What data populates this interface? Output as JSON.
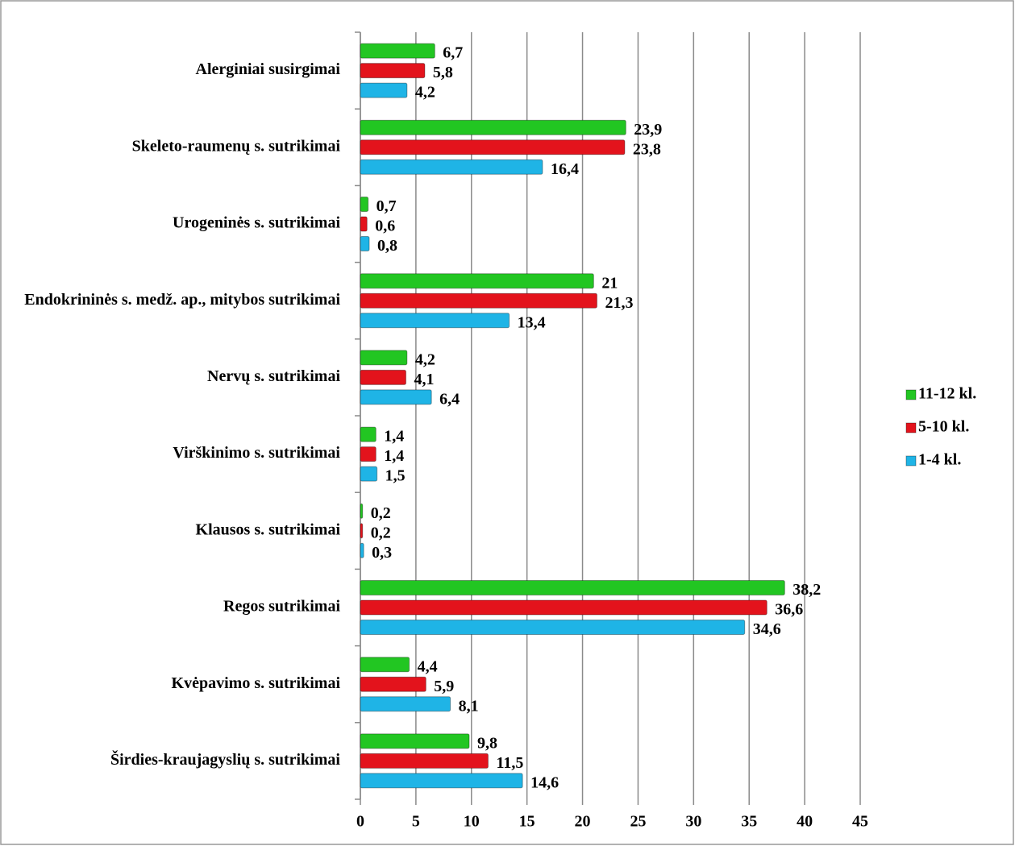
{
  "chart_data": {
    "type": "bar",
    "orientation": "horizontal",
    "categories": [
      "Alerginiai susirgimai",
      "Skeleto-raumenų s. sutrikimai",
      "Urogeninės s. sutrikimai",
      "Endokrininės s. medž. ap., mitybos sutrikimai",
      "Nervų s. sutrikimai",
      "Virškinimo s. sutrikimai",
      "Klausos s. sutrikimai",
      "Regos sutrikimai",
      "Kvėpavimo s. sutrikimai",
      "Širdies-kraujagyslių s. sutrikimai"
    ],
    "series": [
      {
        "name": "11-12 kl.",
        "color": "#22c622",
        "values": [
          6.7,
          23.9,
          0.7,
          21,
          4.2,
          1.4,
          0.2,
          38.2,
          4.4,
          9.8
        ],
        "value_labels": [
          "6,7",
          "23,9",
          "0,7",
          "21",
          "4,2",
          "1,4",
          "0,2",
          "38,2",
          "4,4",
          "9,8"
        ]
      },
      {
        "name": "5-10 kl.",
        "color": "#e3131c",
        "values": [
          5.8,
          23.8,
          0.6,
          21.3,
          4.1,
          1.4,
          0.2,
          36.6,
          5.9,
          11.5
        ],
        "value_labels": [
          "5,8",
          "23,8",
          "0,6",
          "21,3",
          "4,1",
          "1,4",
          "0,2",
          "36,6",
          "5,9",
          "11,5"
        ]
      },
      {
        "name": "1-4 kl.",
        "color": "#1fb4e6",
        "values": [
          4.2,
          16.4,
          0.8,
          13.4,
          6.4,
          1.5,
          0.3,
          34.6,
          8.1,
          14.6
        ],
        "value_labels": [
          "4,2",
          "16,4",
          "0,8",
          "13,4",
          "6,4",
          "1,5",
          "0,3",
          "34,6",
          "8,1",
          "14,6"
        ]
      }
    ],
    "xlim": [
      0,
      45
    ],
    "xticks": [
      0,
      5,
      10,
      15,
      20,
      25,
      30,
      35,
      40,
      45
    ],
    "grid": true,
    "legend": "right"
  }
}
